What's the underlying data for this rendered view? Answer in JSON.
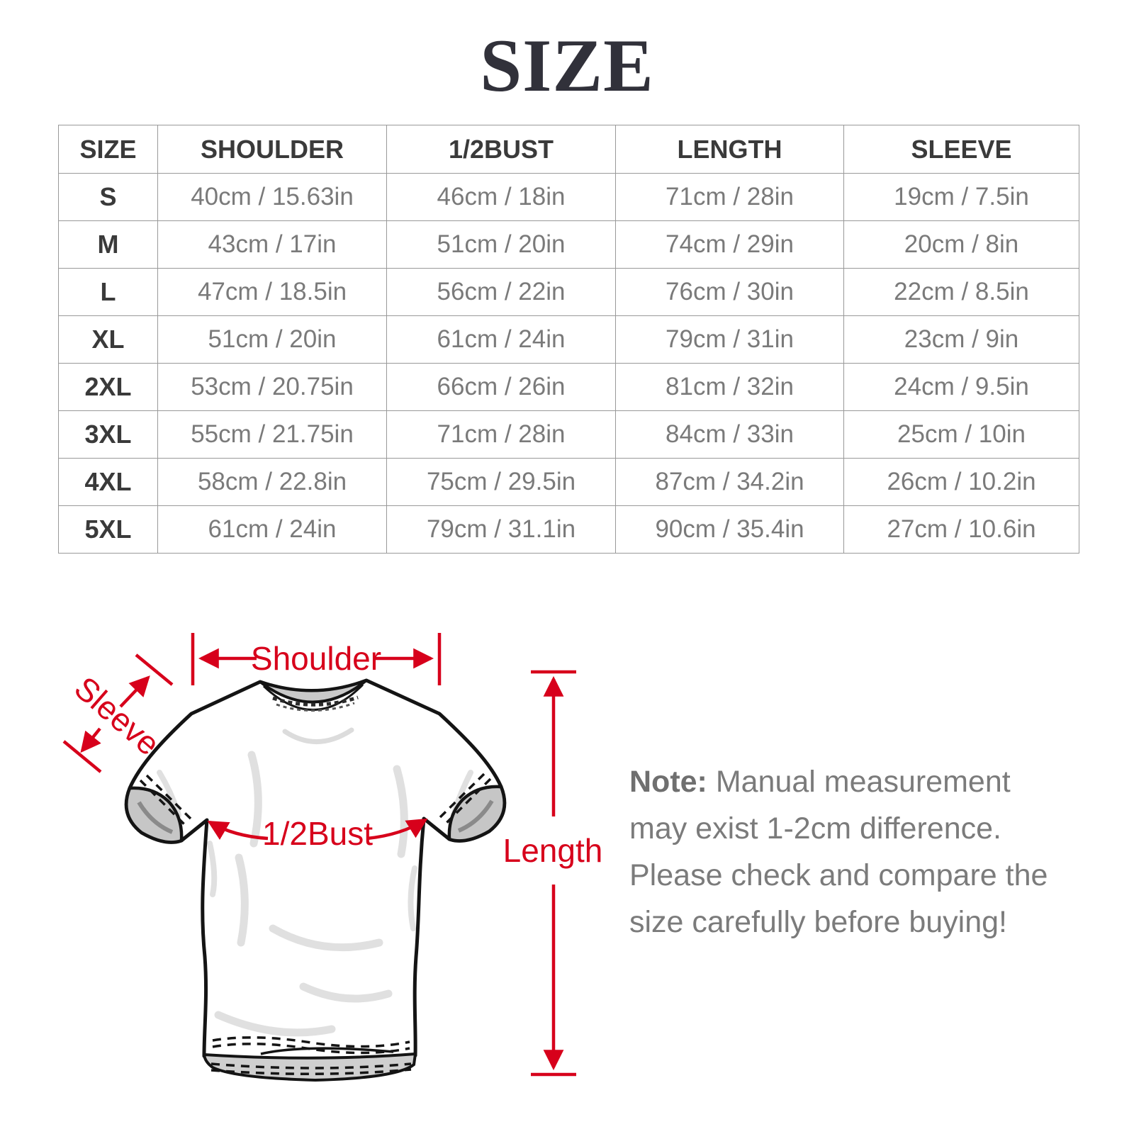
{
  "title": "SIZE",
  "table": {
    "headers": [
      "SIZE",
      "SHOULDER",
      "1/2BUST",
      "LENGTH",
      "SLEEVE"
    ],
    "rows": [
      {
        "size": "S",
        "shoulder": "40cm / 15.63in",
        "bust": "46cm / 18in",
        "length": "71cm / 28in",
        "sleeve": "19cm / 7.5in"
      },
      {
        "size": "M",
        "shoulder": "43cm / 17in",
        "bust": "51cm / 20in",
        "length": "74cm / 29in",
        "sleeve": "20cm / 8in"
      },
      {
        "size": "L",
        "shoulder": "47cm / 18.5in",
        "bust": "56cm / 22in",
        "length": "76cm / 30in",
        "sleeve": "22cm / 8.5in"
      },
      {
        "size": "XL",
        "shoulder": "51cm / 20in",
        "bust": "61cm / 24in",
        "length": "79cm / 31in",
        "sleeve": "23cm / 9in"
      },
      {
        "size": "2XL",
        "shoulder": "53cm / 20.75in",
        "bust": "66cm / 26in",
        "length": "81cm / 32in",
        "sleeve": "24cm / 9.5in"
      },
      {
        "size": "3XL",
        "shoulder": "55cm / 21.75in",
        "bust": "71cm / 28in",
        "length": "84cm / 33in",
        "sleeve": "25cm / 10in"
      },
      {
        "size": "4XL",
        "shoulder": "58cm / 22.8in",
        "bust": "75cm / 29.5in",
        "length": "87cm / 34.2in",
        "sleeve": "26cm / 10.2in"
      },
      {
        "size": "5XL",
        "shoulder": "61cm / 24in",
        "bust": "79cm / 31.1in",
        "length": "90cm / 35.4in",
        "sleeve": "27cm / 10.6in"
      }
    ]
  },
  "diagram": {
    "labels": {
      "shoulder": "Shoulder",
      "sleeve": "Sleeve",
      "bust": "1/2Bust",
      "length": "Length"
    },
    "accent_color": "#d7001b"
  },
  "note": {
    "label": "Note:",
    "text": " Manual measurement may exist 1-2cm difference. Please check and compare the size carefully before buying!"
  }
}
